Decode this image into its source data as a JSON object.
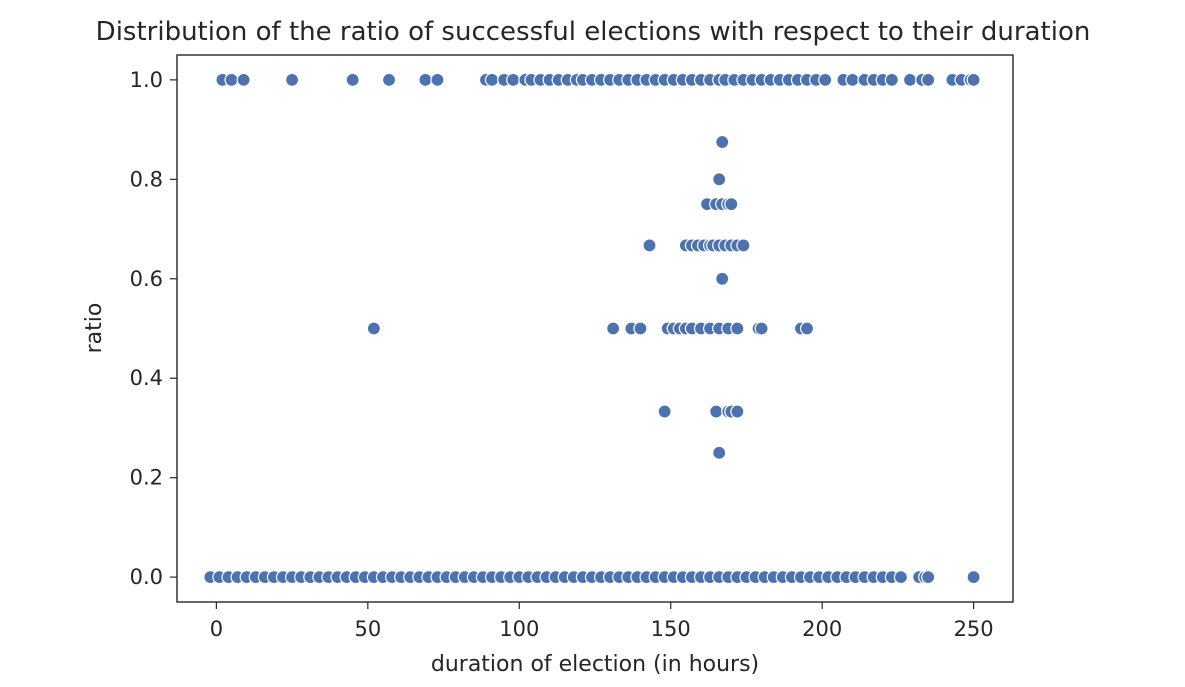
{
  "chart_data": {
    "type": "scatter",
    "title": "Distribution of the ratio of successful elections with respect to their duration",
    "xlabel": "duration of election (in hours)",
    "ylabel": "ratio",
    "xlim": [
      -13,
      263
    ],
    "ylim": [
      -0.05,
      1.05
    ],
    "xticks": [
      0,
      50,
      100,
      150,
      200,
      250
    ],
    "xtick_labels": [
      "0",
      "50",
      "100",
      "150",
      "200",
      "250"
    ],
    "yticks": [
      0.0,
      0.2,
      0.4,
      0.6,
      0.8,
      1.0
    ],
    "ytick_labels": [
      "0.0",
      "0.2",
      "0.4",
      "0.6",
      "0.8",
      "1.0"
    ],
    "grid": false,
    "marker_color": "#4C72B0",
    "marker_edge_color": "#ffffff",
    "points": [
      [
        2,
        1.0
      ],
      [
        5,
        1.0
      ],
      [
        9,
        1.0
      ],
      [
        25,
        1.0
      ],
      [
        45,
        1.0
      ],
      [
        57,
        1.0
      ],
      [
        69,
        1.0
      ],
      [
        73,
        1.0
      ],
      [
        89,
        1.0
      ],
      [
        91,
        1.0
      ],
      [
        95,
        1.0
      ],
      [
        98,
        1.0
      ],
      [
        102,
        1.0
      ],
      [
        104,
        1.0
      ],
      [
        107,
        1.0
      ],
      [
        110,
        1.0
      ],
      [
        113,
        1.0
      ],
      [
        116,
        1.0
      ],
      [
        119,
        1.0
      ],
      [
        121,
        1.0
      ],
      [
        124,
        1.0
      ],
      [
        127,
        1.0
      ],
      [
        130,
        1.0
      ],
      [
        133,
        1.0
      ],
      [
        136,
        1.0
      ],
      [
        139,
        1.0
      ],
      [
        142,
        1.0
      ],
      [
        145,
        1.0
      ],
      [
        148,
        1.0
      ],
      [
        151,
        1.0
      ],
      [
        154,
        1.0
      ],
      [
        157,
        1.0
      ],
      [
        160,
        1.0
      ],
      [
        163,
        1.0
      ],
      [
        166,
        1.0
      ],
      [
        168,
        1.0
      ],
      [
        171,
        1.0
      ],
      [
        174,
        1.0
      ],
      [
        177,
        1.0
      ],
      [
        180,
        1.0
      ],
      [
        183,
        1.0
      ],
      [
        186,
        1.0
      ],
      [
        189,
        1.0
      ],
      [
        192,
        1.0
      ],
      [
        195,
        1.0
      ],
      [
        198,
        1.0
      ],
      [
        201,
        1.0
      ],
      [
        207,
        1.0
      ],
      [
        210,
        1.0
      ],
      [
        214,
        1.0
      ],
      [
        217,
        1.0
      ],
      [
        220,
        1.0
      ],
      [
        223,
        1.0
      ],
      [
        229,
        1.0
      ],
      [
        233,
        1.0
      ],
      [
        235,
        1.0
      ],
      [
        243,
        1.0
      ],
      [
        246,
        1.0
      ],
      [
        249,
        1.0
      ],
      [
        250,
        1.0
      ],
      [
        167,
        0.875
      ],
      [
        166,
        0.8
      ],
      [
        162,
        0.75
      ],
      [
        165,
        0.75
      ],
      [
        167,
        0.75
      ],
      [
        169,
        0.75
      ],
      [
        170,
        0.75
      ],
      [
        143,
        0.667
      ],
      [
        155,
        0.667
      ],
      [
        157,
        0.667
      ],
      [
        159,
        0.667
      ],
      [
        161,
        0.667
      ],
      [
        163,
        0.667
      ],
      [
        164,
        0.667
      ],
      [
        166,
        0.667
      ],
      [
        168,
        0.667
      ],
      [
        170,
        0.667
      ],
      [
        172,
        0.667
      ],
      [
        174,
        0.667
      ],
      [
        167,
        0.6
      ],
      [
        52,
        0.5
      ],
      [
        131,
        0.5
      ],
      [
        137,
        0.5
      ],
      [
        140,
        0.5
      ],
      [
        149,
        0.5
      ],
      [
        151,
        0.5
      ],
      [
        153,
        0.5
      ],
      [
        155,
        0.5
      ],
      [
        157,
        0.5
      ],
      [
        160,
        0.5
      ],
      [
        163,
        0.5
      ],
      [
        166,
        0.5
      ],
      [
        169,
        0.5
      ],
      [
        172,
        0.5
      ],
      [
        179,
        0.5
      ],
      [
        180,
        0.5
      ],
      [
        193,
        0.5
      ],
      [
        195,
        0.5
      ],
      [
        148,
        0.333
      ],
      [
        165,
        0.333
      ],
      [
        169,
        0.333
      ],
      [
        170,
        0.333
      ],
      [
        172,
        0.333
      ],
      [
        166,
        0.25
      ],
      [
        -2,
        0.0
      ],
      [
        1,
        0.0
      ],
      [
        4,
        0.0
      ],
      [
        7,
        0.0
      ],
      [
        10,
        0.0
      ],
      [
        13,
        0.0
      ],
      [
        16,
        0.0
      ],
      [
        19,
        0.0
      ],
      [
        22,
        0.0
      ],
      [
        25,
        0.0
      ],
      [
        28,
        0.0
      ],
      [
        31,
        0.0
      ],
      [
        34,
        0.0
      ],
      [
        37,
        0.0
      ],
      [
        40,
        0.0
      ],
      [
        43,
        0.0
      ],
      [
        46,
        0.0
      ],
      [
        49,
        0.0
      ],
      [
        52,
        0.0
      ],
      [
        55,
        0.0
      ],
      [
        58,
        0.0
      ],
      [
        61,
        0.0
      ],
      [
        64,
        0.0
      ],
      [
        67,
        0.0
      ],
      [
        70,
        0.0
      ],
      [
        73,
        0.0
      ],
      [
        76,
        0.0
      ],
      [
        79,
        0.0
      ],
      [
        82,
        0.0
      ],
      [
        85,
        0.0
      ],
      [
        88,
        0.0
      ],
      [
        91,
        0.0
      ],
      [
        94,
        0.0
      ],
      [
        97,
        0.0
      ],
      [
        100,
        0.0
      ],
      [
        103,
        0.0
      ],
      [
        106,
        0.0
      ],
      [
        109,
        0.0
      ],
      [
        112,
        0.0
      ],
      [
        115,
        0.0
      ],
      [
        118,
        0.0
      ],
      [
        121,
        0.0
      ],
      [
        124,
        0.0
      ],
      [
        127,
        0.0
      ],
      [
        130,
        0.0
      ],
      [
        133,
        0.0
      ],
      [
        136,
        0.0
      ],
      [
        139,
        0.0
      ],
      [
        142,
        0.0
      ],
      [
        145,
        0.0
      ],
      [
        148,
        0.0
      ],
      [
        151,
        0.0
      ],
      [
        154,
        0.0
      ],
      [
        157,
        0.0
      ],
      [
        160,
        0.0
      ],
      [
        163,
        0.0
      ],
      [
        166,
        0.0
      ],
      [
        169,
        0.0
      ],
      [
        172,
        0.0
      ],
      [
        175,
        0.0
      ],
      [
        178,
        0.0
      ],
      [
        181,
        0.0
      ],
      [
        184,
        0.0
      ],
      [
        187,
        0.0
      ],
      [
        190,
        0.0
      ],
      [
        193,
        0.0
      ],
      [
        196,
        0.0
      ],
      [
        199,
        0.0
      ],
      [
        202,
        0.0
      ],
      [
        205,
        0.0
      ],
      [
        208,
        0.0
      ],
      [
        211,
        0.0
      ],
      [
        214,
        0.0
      ],
      [
        217,
        0.0
      ],
      [
        220,
        0.0
      ],
      [
        223,
        0.0
      ],
      [
        226,
        0.0
      ],
      [
        232,
        0.0
      ],
      [
        234,
        0.0
      ],
      [
        235,
        0.0
      ],
      [
        250,
        0.0
      ]
    ]
  }
}
